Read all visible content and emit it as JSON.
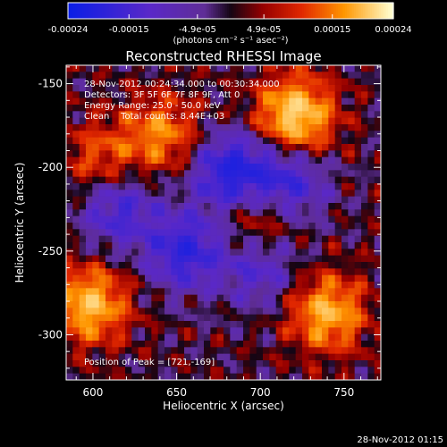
{
  "chart_data": {
    "type": "heatmap",
    "title": "Reconstructed RHESSI Image",
    "xlabel": "Heliocentric X (arcsec)",
    "ylabel": "Heliocentric Y (arcsec)",
    "xlim": [
      584,
      772
    ],
    "ylim": [
      -327,
      -139
    ],
    "xticks": [
      600,
      650,
      700,
      750
    ],
    "yticks": [
      -300,
      -250,
      -200,
      -150
    ],
    "colorbar": {
      "range": [
        -0.00024,
        0.00024
      ],
      "tick_values": [
        -0.00024,
        -0.00015,
        -4.9e-05,
        4.9e-05,
        0.00015,
        0.00024
      ],
      "tick_labels": [
        "-0.00024",
        "-0.00015",
        "-4.9e-05",
        "4.9e-05",
        "0.00015",
        "0.00024"
      ],
      "unit_label": "(photons cm⁻² s⁻¹ asec⁻²)"
    },
    "annotations": [
      "28-Nov-2012 00:24:34.000 to 00:30:34.000",
      "Detectors: 3F 5F 6F 7F 8F 9F, Att 0",
      "Energy Range: 25.0 - 50.0 keV",
      "Clean    Total counts: 8.44E+03"
    ],
    "peak_label": "Position of Peak = [721,-169]",
    "peak_position": [
      721,
      -169
    ],
    "bright_regions": [
      {
        "x": 721,
        "y": -169,
        "v": 1.0
      },
      {
        "x": 598,
        "y": -282,
        "v": 0.85
      },
      {
        "x": 740,
        "y": -287,
        "v": 0.8
      },
      {
        "x": 641,
        "y": -180,
        "v": 0.6
      },
      {
        "x": 700,
        "y": -230,
        "v": 0.5
      },
      {
        "x": 605,
        "y": -195,
        "v": 0.45
      }
    ],
    "dark_regions": [
      {
        "x": 683,
        "y": -203,
        "v": -0.9
      },
      {
        "x": 716,
        "y": -210,
        "v": -0.7
      },
      {
        "x": 655,
        "y": -250,
        "v": -0.75
      },
      {
        "x": 700,
        "y": -260,
        "v": -0.5
      },
      {
        "x": 615,
        "y": -225,
        "v": -0.6
      }
    ]
  },
  "footer": {
    "timestamp": "28-Nov-2012 01:15"
  }
}
